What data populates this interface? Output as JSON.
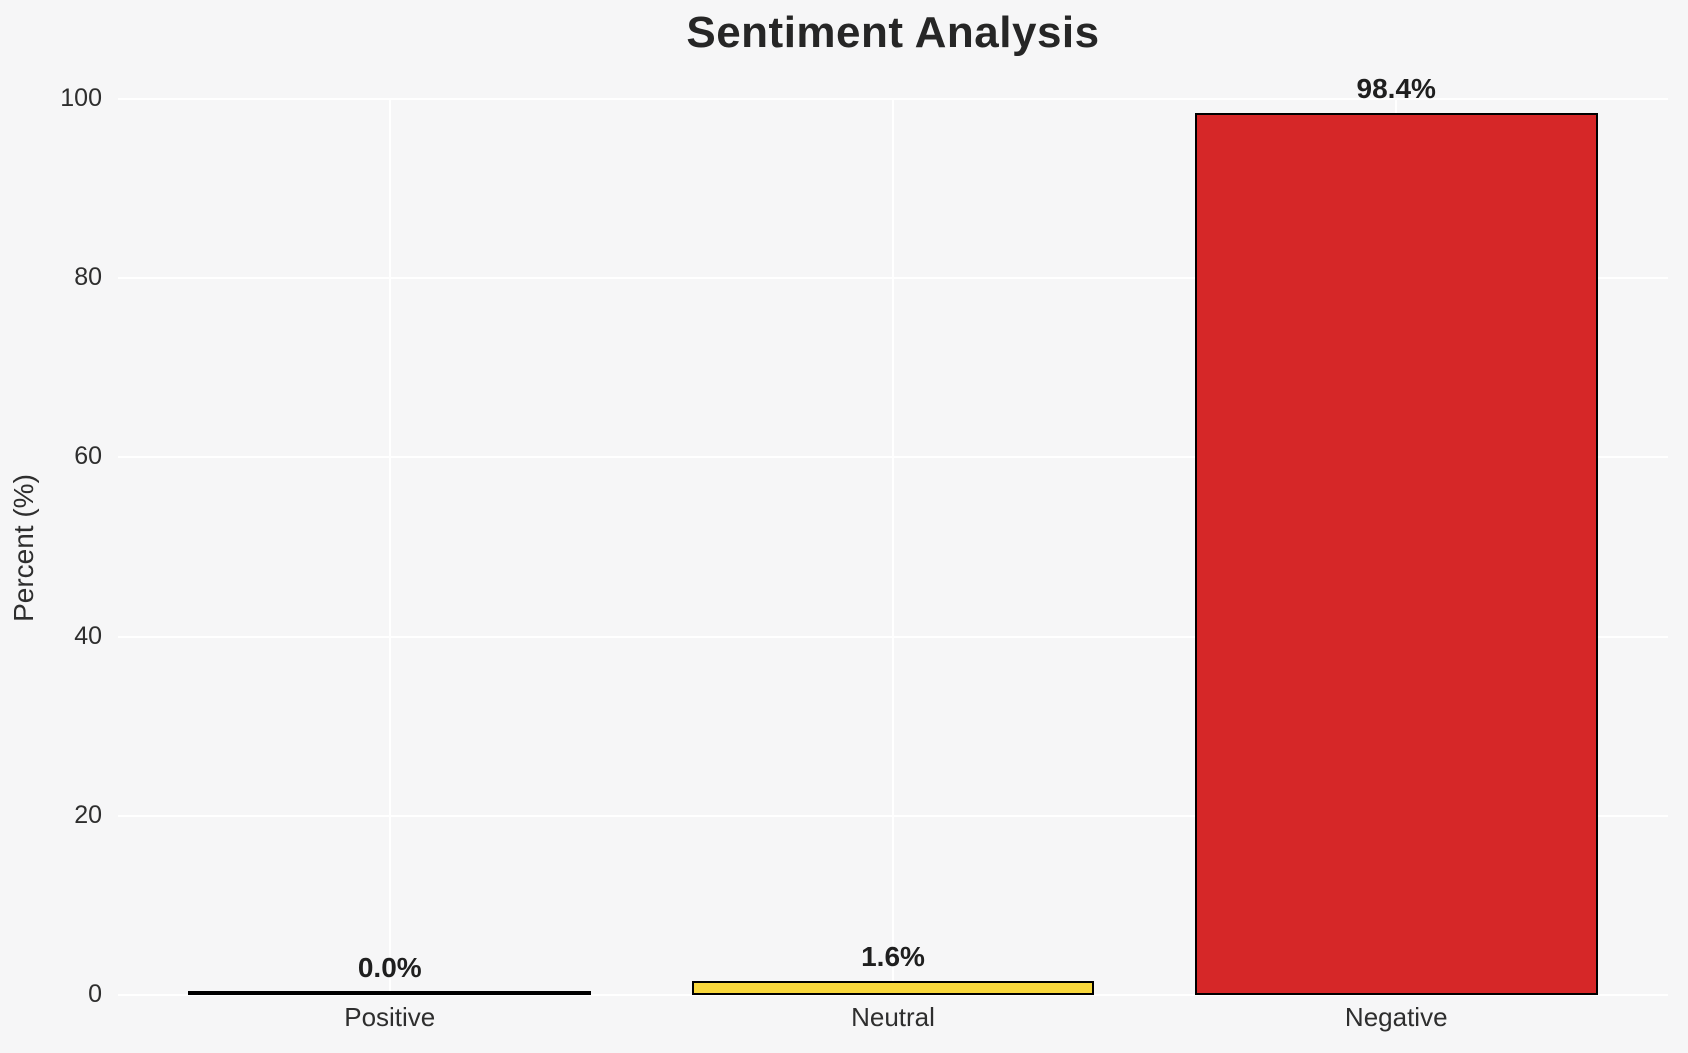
{
  "chart_data": {
    "type": "bar",
    "title": "Sentiment Analysis",
    "ylabel": "Percent (%)",
    "xlabel": "",
    "categories": [
      "Positive",
      "Neutral",
      "Negative"
    ],
    "values": [
      0.0,
      1.6,
      98.4
    ],
    "value_labels": [
      "0.0%",
      "1.6%",
      "98.4%"
    ],
    "bar_colors": [
      "#f6f6f7",
      "#f8d73c",
      "#d62728"
    ],
    "bar_edge_color": "#000000",
    "ylim": [
      0,
      100
    ],
    "yticks": [
      0,
      20,
      40,
      60,
      80,
      100
    ],
    "grid": true,
    "gridline_color": "#ffffff",
    "background_color": "#f6f6f7",
    "legend": false
  }
}
